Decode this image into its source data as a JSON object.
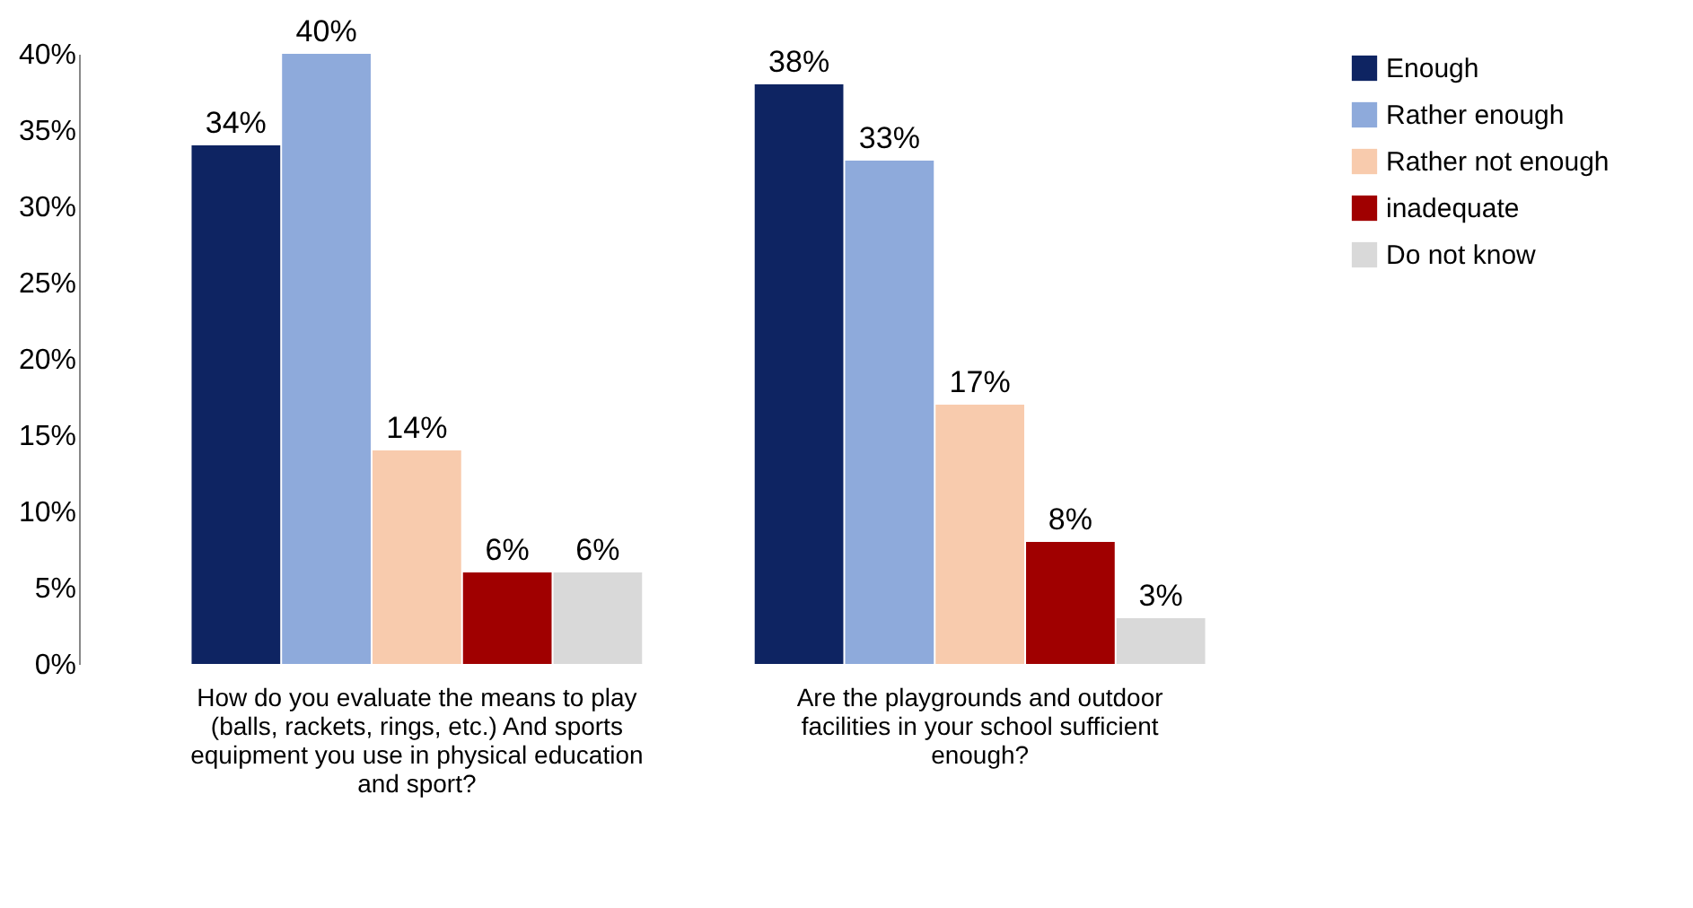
{
  "chart_data": {
    "type": "bar",
    "categories": [
      "How do you evaluate the means to play (balls, rackets, rings, etc.) And sports equipment you use in physical education and sport?",
      "Are the playgrounds and outdoor facilities in your school sufficient enough?"
    ],
    "series": [
      {
        "name": "Enough",
        "color": "#0e2462",
        "values": [
          34,
          38
        ],
        "value_labels": [
          "34%",
          "38%"
        ]
      },
      {
        "name": "Rather enough",
        "color": "#8eaadb",
        "values": [
          40,
          33
        ],
        "value_labels": [
          "40%",
          "33%"
        ]
      },
      {
        "name": "Rather not enough",
        "color": "#f8cbad",
        "values": [
          14,
          17
        ],
        "value_labels": [
          "14%",
          "17%"
        ]
      },
      {
        "name": "inadequate",
        "color": "#a00000",
        "values": [
          6,
          8
        ],
        "value_labels": [
          "6%",
          "8%"
        ]
      },
      {
        "name": "Do not know",
        "color": "#d9d9d9",
        "values": [
          6,
          3
        ],
        "value_labels": [
          "6%",
          "3%"
        ]
      }
    ],
    "ylim": [
      0,
      40
    ],
    "yticks": [
      {
        "value": 0,
        "label": "0%"
      },
      {
        "value": 5,
        "label": "5%"
      },
      {
        "value": 10,
        "label": "10%"
      },
      {
        "value": 15,
        "label": "15%"
      },
      {
        "value": 20,
        "label": "20%"
      },
      {
        "value": 25,
        "label": "25%"
      },
      {
        "value": 30,
        "label": "30%"
      },
      {
        "value": 35,
        "label": "35%"
      },
      {
        "value": 40,
        "label": "40%"
      }
    ],
    "grid": false,
    "legend": "right"
  }
}
